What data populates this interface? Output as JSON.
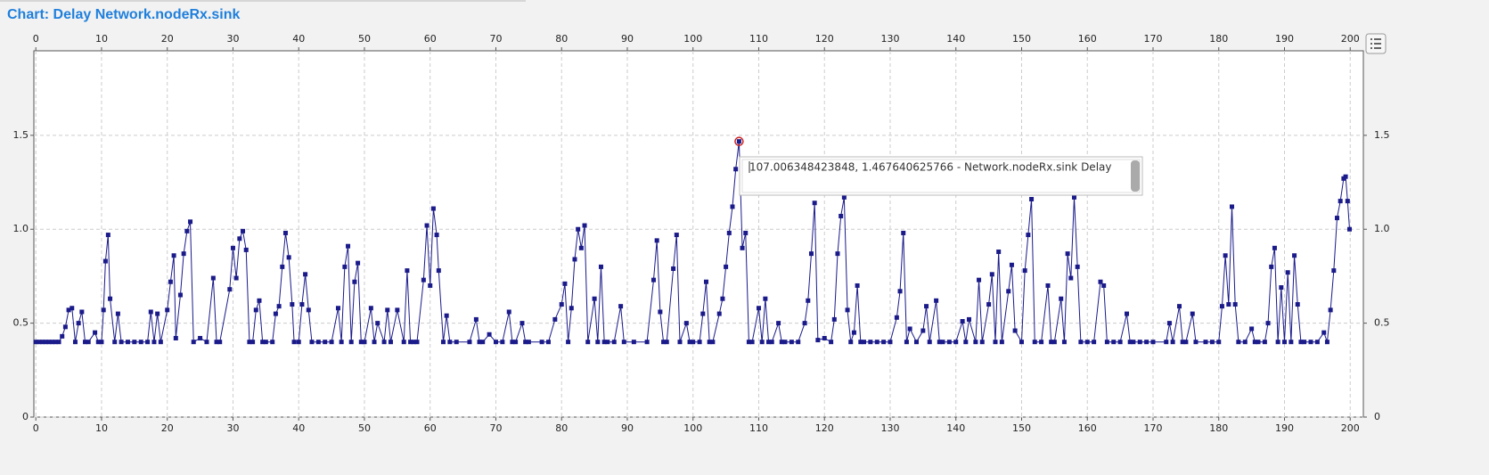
{
  "chart_data": {
    "type": "line",
    "title": "Chart: Delay Network.nodeRx.sink",
    "tooltip": "107.006348423848, 1.467640625766 - Network.nodeRx.sink Delay",
    "color": "#1a1a8a",
    "highlight_color": "#cc2222",
    "highlight_index": 165,
    "grid": true,
    "xlim": [
      -0.3,
      202
    ],
    "ylim": [
      0,
      1.95
    ],
    "xticks": [
      0,
      10,
      20,
      30,
      40,
      50,
      60,
      70,
      80,
      90,
      100,
      110,
      120,
      130,
      140,
      150,
      160,
      170,
      180,
      190,
      200
    ],
    "yticks": [
      0,
      0.5,
      {
        "value": 1,
        "label": "1.0"
      },
      1.5
    ],
    "x": [
      0,
      0.5,
      1,
      1.5,
      2,
      2.5,
      3,
      3.5,
      4,
      4.5,
      5,
      5.5,
      6,
      6.5,
      7,
      7.5,
      8,
      9,
      9.5,
      10,
      10.3,
      10.6,
      11,
      11.3,
      12,
      12.5,
      13,
      14,
      15,
      16,
      17,
      17.5,
      18,
      18.5,
      19,
      20,
      20.5,
      21,
      21.3,
      22,
      22.5,
      23,
      23.5,
      24,
      25,
      26,
      27,
      27.5,
      28,
      29.5,
      30,
      30.5,
      31,
      31.5,
      32,
      32.5,
      33,
      33.5,
      34,
      34.5,
      35,
      36,
      36.5,
      37,
      37.5,
      38,
      38.5,
      39,
      39.3,
      40,
      40.5,
      41,
      41.5,
      42,
      43,
      44,
      45,
      46,
      46.5,
      47,
      47.5,
      48,
      48.5,
      49,
      49.5,
      50,
      51,
      51.5,
      52,
      53,
      53.5,
      54,
      55,
      56,
      56.5,
      57,
      57.5,
      58,
      59,
      59.5,
      60,
      60.5,
      61,
      61.3,
      62,
      62.5,
      63,
      64,
      66,
      67,
      67.5,
      68,
      69,
      70,
      71,
      72,
      72.5,
      73,
      74,
      74.5,
      75,
      77,
      78,
      79,
      80,
      80.5,
      81,
      81.5,
      82,
      82.5,
      83,
      83.5,
      84,
      85,
      85.5,
      86,
      86.5,
      87,
      88,
      89,
      89.5,
      91,
      93,
      94,
      94.5,
      95,
      95.5,
      96,
      97,
      97.5,
      98,
      99,
      99.5,
      100,
      101,
      101.5,
      102,
      102.5,
      103,
      104,
      104.5,
      105,
      105.5,
      106,
      106.5,
      107.006348423848,
      107.5,
      108,
      108.5,
      109,
      110,
      110.5,
      111,
      111.5,
      112,
      113,
      113.5,
      114,
      115,
      116,
      117,
      117.5,
      118,
      118.5,
      119,
      120,
      121,
      121.5,
      122,
      122.5,
      123,
      123.5,
      124,
      124.5,
      125,
      125.5,
      126,
      127,
      128,
      129,
      130,
      131,
      131.5,
      132,
      132.5,
      133,
      134,
      135,
      135.5,
      136,
      137,
      137.5,
      138,
      139,
      140,
      141,
      141.5,
      142,
      143,
      143.5,
      144,
      145,
      145.5,
      146,
      146.5,
      147,
      148,
      148.5,
      149,
      150,
      150.5,
      151,
      151.5,
      152,
      153,
      154,
      154.5,
      155,
      156,
      156.5,
      157,
      157.5,
      158,
      158.5,
      159,
      160,
      161,
      162,
      162.5,
      163,
      164,
      165,
      166,
      166.5,
      167,
      168,
      169,
      170,
      172,
      172.5,
      173,
      174,
      174.5,
      175,
      176,
      176.5,
      178,
      179,
      180,
      180.5,
      181,
      181.5,
      182,
      182.5,
      183,
      184,
      185,
      185.5,
      186,
      187,
      187.5,
      188,
      188.5,
      189,
      189.5,
      190,
      190.5,
      191,
      191.5,
      192,
      192.5,
      193,
      194,
      195,
      196,
      196.5,
      197,
      197.5,
      198,
      198.5,
      199,
      199.3,
      199.6,
      199.9
    ],
    "values": [
      0.4,
      0.4,
      0.4,
      0.4,
      0.4,
      0.4,
      0.4,
      0.4,
      0.43,
      0.48,
      0.57,
      0.58,
      0.4,
      0.5,
      0.56,
      0.4,
      0.4,
      0.45,
      0.4,
      0.4,
      0.57,
      0.83,
      0.97,
      0.63,
      0.4,
      0.55,
      0.4,
      0.4,
      0.4,
      0.4,
      0.4,
      0.56,
      0.4,
      0.55,
      0.4,
      0.57,
      0.72,
      0.86,
      0.42,
      0.65,
      0.87,
      0.99,
      1.04,
      0.4,
      0.42,
      0.4,
      0.74,
      0.4,
      0.4,
      0.68,
      0.9,
      0.74,
      0.95,
      0.99,
      0.89,
      0.4,
      0.4,
      0.57,
      0.62,
      0.4,
      0.4,
      0.4,
      0.55,
      0.59,
      0.8,
      0.98,
      0.85,
      0.6,
      0.4,
      0.4,
      0.6,
      0.76,
      0.57,
      0.4,
      0.4,
      0.4,
      0.4,
      0.58,
      0.4,
      0.8,
      0.91,
      0.4,
      0.72,
      0.82,
      0.4,
      0.4,
      0.58,
      0.4,
      0.5,
      0.4,
      0.57,
      0.4,
      0.57,
      0.4,
      0.78,
      0.4,
      0.4,
      0.4,
      0.73,
      1.02,
      0.7,
      1.11,
      0.97,
      0.78,
      0.4,
      0.54,
      0.4,
      0.4,
      0.4,
      0.52,
      0.4,
      0.4,
      0.44,
      0.4,
      0.4,
      0.56,
      0.4,
      0.4,
      0.5,
      0.4,
      0.4,
      0.4,
      0.4,
      0.52,
      0.6,
      0.71,
      0.4,
      0.58,
      0.84,
      1.0,
      0.9,
      1.02,
      0.4,
      0.63,
      0.4,
      0.8,
      0.4,
      0.4,
      0.4,
      0.59,
      0.4,
      0.4,
      0.4,
      0.73,
      0.94,
      0.56,
      0.4,
      0.4,
      0.79,
      0.97,
      0.4,
      0.5,
      0.4,
      0.4,
      0.4,
      0.55,
      0.72,
      0.4,
      0.4,
      0.55,
      0.63,
      0.8,
      0.98,
      1.12,
      1.32,
      1.467640625766,
      0.9,
      0.98,
      0.4,
      0.4,
      0.58,
      0.4,
      0.63,
      0.4,
      0.4,
      0.5,
      0.4,
      0.4,
      0.4,
      0.4,
      0.5,
      0.62,
      0.87,
      1.14,
      0.41,
      0.42,
      0.4,
      0.52,
      0.87,
      1.07,
      1.17,
      0.57,
      0.4,
      0.45,
      0.7,
      0.4,
      0.4,
      0.4,
      0.4,
      0.4,
      0.4,
      0.53,
      0.67,
      0.98,
      0.4,
      0.47,
      0.4,
      0.46,
      0.59,
      0.4,
      0.62,
      0.4,
      0.4,
      0.4,
      0.4,
      0.51,
      0.4,
      0.52,
      0.4,
      0.73,
      0.4,
      0.6,
      0.76,
      0.4,
      0.88,
      0.4,
      0.67,
      0.81,
      0.46,
      0.4,
      0.78,
      0.97,
      1.16,
      0.4,
      0.4,
      0.7,
      0.4,
      0.4,
      0.63,
      0.4,
      0.87,
      0.74,
      1.17,
      0.8,
      0.4,
      0.4,
      0.4,
      0.72,
      0.7,
      0.4,
      0.4,
      0.4,
      0.55,
      0.4,
      0.4,
      0.4,
      0.4,
      0.4,
      0.4,
      0.5,
      0.4,
      0.59,
      0.4,
      0.4,
      0.55,
      0.4,
      0.4,
      0.4,
      0.4,
      0.59,
      0.86,
      0.6,
      1.12,
      0.6,
      0.4,
      0.4,
      0.47,
      0.4,
      0.4,
      0.4,
      0.5,
      0.8,
      0.9,
      0.4,
      0.69,
      0.4,
      0.77,
      0.4,
      0.86,
      0.6,
      0.4,
      0.4,
      0.4,
      0.4,
      0.45,
      0.4,
      0.57,
      0.78,
      1.06,
      1.15,
      1.27,
      1.28,
      1.15,
      1.0
    ]
  }
}
